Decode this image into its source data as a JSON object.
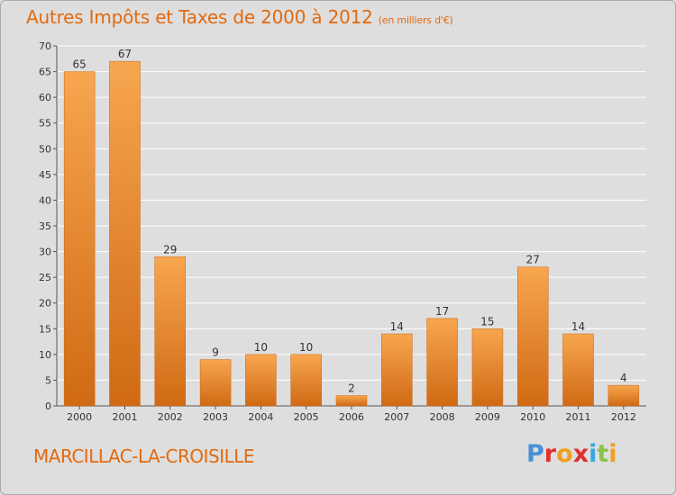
{
  "chart_title": "Autres Impôts et Taxes de 2000 à 2012",
  "chart_subtitle": "(en milliers d'€)",
  "commune": "MARCILLAC-LA-CROISILLE",
  "logo": {
    "letters": [
      "P",
      "r",
      "o",
      "x",
      "i",
      "t",
      "i"
    ],
    "colors": [
      "#4a90d9",
      "#e0302f",
      "#f0a020",
      "#e0302f",
      "#3aa8e0",
      "#8bc34a",
      "#f0a020"
    ]
  },
  "colors": {
    "bar_light": "#f7a64f",
    "bar_dark": "#d06a14",
    "title": "#e26a0f",
    "grid": "#ffffff",
    "background": "#dedede"
  },
  "chart_data": {
    "type": "bar",
    "categories": [
      "2000",
      "2001",
      "2002",
      "2003",
      "2004",
      "2005",
      "2006",
      "2007",
      "2008",
      "2009",
      "2010",
      "2011",
      "2012"
    ],
    "values": [
      65,
      67,
      29,
      9,
      10,
      10,
      2,
      14,
      17,
      15,
      27,
      14,
      4
    ],
    "data_labels": [
      "65",
      "67",
      "29",
      "9",
      "10",
      "10",
      "2",
      "14",
      "17",
      "15",
      "27",
      "14",
      "4"
    ],
    "yticks": [
      "0",
      "5",
      "10",
      "15",
      "20",
      "25",
      "30",
      "35",
      "40",
      "45",
      "50",
      "55",
      "60",
      "65",
      "70"
    ],
    "ylim": [
      0,
      70
    ],
    "grid": true,
    "xlabel": "",
    "ylabel": ""
  }
}
